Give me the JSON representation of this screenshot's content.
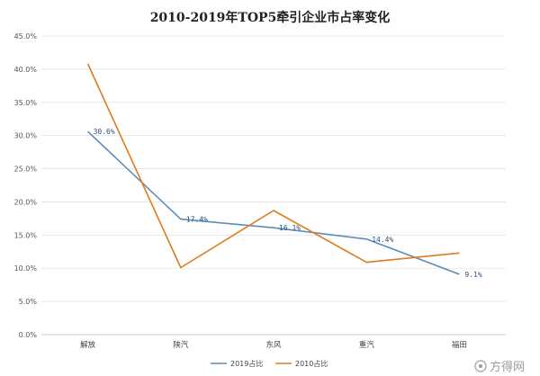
{
  "chart_data": {
    "type": "line",
    "title": "2010-2019年TOP5牵引企业市占率变化",
    "categories": [
      "解放",
      "陕汽",
      "东风",
      "重汽",
      "福田"
    ],
    "series": [
      {
        "name": "2019占比",
        "color": "#5b8db8",
        "values": [
          30.6,
          17.4,
          16.1,
          14.4,
          9.1
        ],
        "labels": [
          "30.6%",
          "17.4%",
          "16.1%",
          "14.4%",
          "9.1%"
        ]
      },
      {
        "name": "2010占比",
        "color": "#e07b1d",
        "values": [
          40.8,
          10.1,
          18.7,
          10.9,
          12.3
        ]
      }
    ],
    "ylim": [
      0,
      45
    ],
    "yticks": [
      "0.0%",
      "5.0%",
      "10.0%",
      "15.0%",
      "20.0%",
      "25.0%",
      "30.0%",
      "35.0%",
      "40.0%",
      "45.0%"
    ],
    "grid": true,
    "legend": "bottom-center"
  },
  "watermark": {
    "text": "方得网"
  }
}
